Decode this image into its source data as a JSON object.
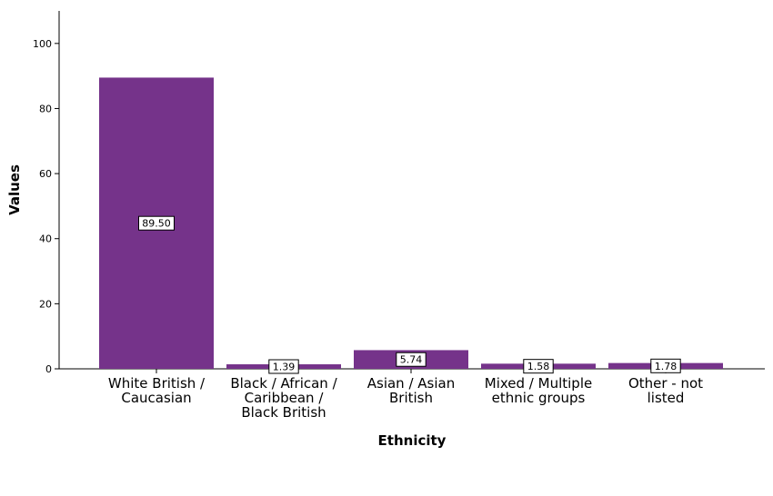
{
  "chart_data": {
    "type": "bar",
    "title": "",
    "xlabel": "Ethnicity",
    "ylabel": "Values",
    "ylim": [
      0,
      110
    ],
    "yticks": [
      0,
      20,
      40,
      60,
      80,
      100
    ],
    "grid": false,
    "categories": [
      [
        "White British /",
        "Caucasian"
      ],
      [
        "Black / African /",
        "Caribbean /",
        "Black British"
      ],
      [
        "Asian / Asian",
        "British"
      ],
      [
        "Mixed / Multiple",
        "ethnic groups"
      ],
      [
        "Other - not",
        "listed"
      ]
    ],
    "values": [
      89.5,
      1.39,
      5.74,
      1.58,
      1.78
    ],
    "data_labels": [
      "89.50",
      "1.39",
      "5.74",
      "1.58",
      "1.78"
    ],
    "bar_color": "#75338a"
  }
}
